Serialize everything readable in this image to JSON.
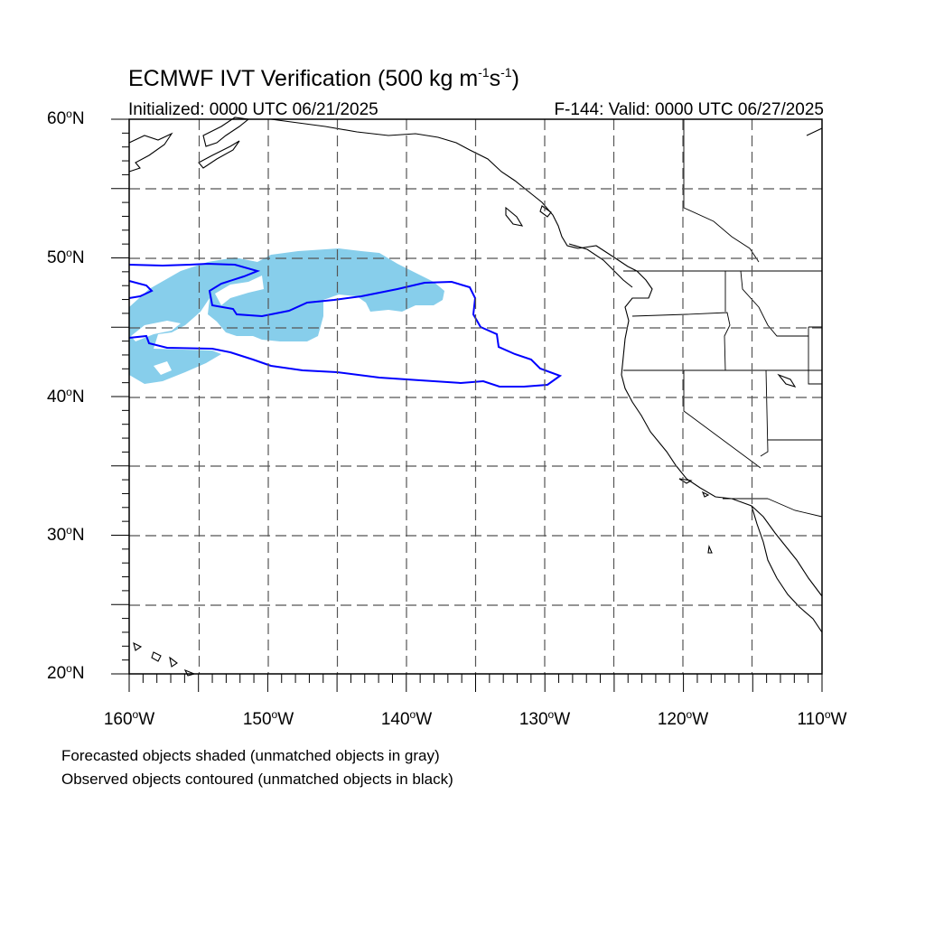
{
  "title": {
    "prefix": "ECMWF IVT Verification (500 kg m",
    "exp1": "-1",
    "mid": "s",
    "exp2": "-1",
    "suffix": ")"
  },
  "initialized": "Initialized: 0000 UTC 06/21/2025",
  "valid": "F-144: Valid: 0000 UTC 06/27/2025",
  "lat_labels": [
    {
      "value": "60",
      "hemi": "N"
    },
    {
      "value": "50",
      "hemi": "N"
    },
    {
      "value": "40",
      "hemi": "N"
    },
    {
      "value": "30",
      "hemi": "N"
    },
    {
      "value": "20",
      "hemi": "N"
    }
  ],
  "lon_labels": [
    {
      "value": "160",
      "hemi": "W"
    },
    {
      "value": "150",
      "hemi": "W"
    },
    {
      "value": "140",
      "hemi": "W"
    },
    {
      "value": "130",
      "hemi": "W"
    },
    {
      "value": "120",
      "hemi": "W"
    },
    {
      "value": "110",
      "hemi": "W"
    }
  ],
  "degree_symbol": "o",
  "footnotes": [
    "Forecasted objects shaded (unmatched objects in gray)",
    "Observed objects contoured (unmatched objects in black)"
  ],
  "colors": {
    "forecast_shading": "#87ceeb",
    "observed_contour": "#0000ff",
    "coastline": "#000000",
    "grid": "#555555"
  },
  "map_extent": {
    "lon_min": -160,
    "lon_max": -110,
    "lat_min": 20,
    "lat_max": 60
  }
}
